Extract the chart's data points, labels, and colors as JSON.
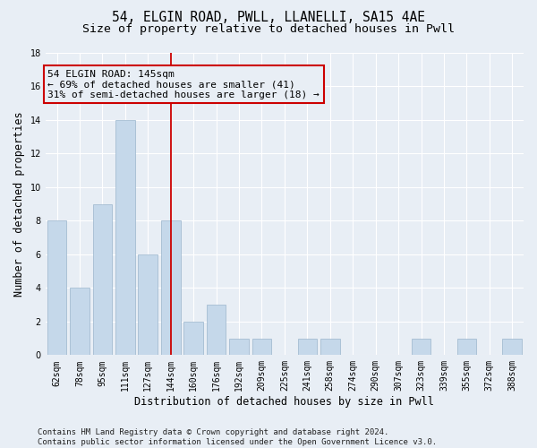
{
  "title": "54, ELGIN ROAD, PWLL, LLANELLI, SA15 4AE",
  "subtitle": "Size of property relative to detached houses in Pwll",
  "xlabel": "Distribution of detached houses by size in Pwll",
  "ylabel": "Number of detached properties",
  "categories": [
    "62sqm",
    "78sqm",
    "95sqm",
    "111sqm",
    "127sqm",
    "144sqm",
    "160sqm",
    "176sqm",
    "192sqm",
    "209sqm",
    "225sqm",
    "241sqm",
    "258sqm",
    "274sqm",
    "290sqm",
    "307sqm",
    "323sqm",
    "339sqm",
    "355sqm",
    "372sqm",
    "388sqm"
  ],
  "values": [
    8,
    4,
    9,
    14,
    6,
    8,
    2,
    3,
    1,
    1,
    0,
    1,
    1,
    0,
    0,
    0,
    1,
    0,
    1,
    0,
    1
  ],
  "bar_color": "#c5d8ea",
  "bar_edgecolor": "#9ab5cc",
  "vline_x_index": 5,
  "vline_color": "#cc0000",
  "annotation_line1": "54 ELGIN ROAD: 145sqm",
  "annotation_line2": "← 69% of detached houses are smaller (41)",
  "annotation_line3": "31% of semi-detached houses are larger (18) →",
  "annotation_box_color": "#cc0000",
  "ylim": [
    0,
    18
  ],
  "yticks": [
    0,
    2,
    4,
    6,
    8,
    10,
    12,
    14,
    16,
    18
  ],
  "footer": "Contains HM Land Registry data © Crown copyright and database right 2024.\nContains public sector information licensed under the Open Government Licence v3.0.",
  "bg_color": "#e8eef5",
  "grid_color": "#ffffff",
  "title_fontsize": 10.5,
  "subtitle_fontsize": 9.5,
  "ylabel_fontsize": 8.5,
  "xlabel_fontsize": 8.5,
  "tick_fontsize": 7,
  "annotation_fontsize": 8,
  "footer_fontsize": 6.5
}
